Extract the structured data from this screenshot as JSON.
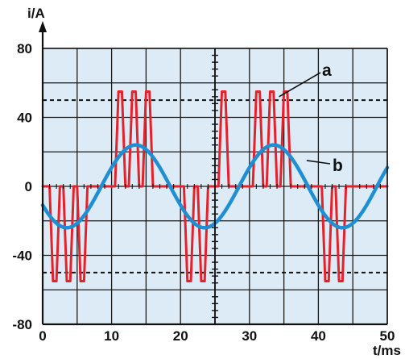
{
  "chart_data": {
    "type": "line",
    "xlabel": "t/ms",
    "ylabel": "i/A",
    "xlim": [
      0,
      50
    ],
    "ylim": [
      -80,
      80
    ],
    "x_ticks": [
      "0",
      "10",
      "20",
      "30",
      "40",
      "50"
    ],
    "y_ticks": [
      "-80",
      "-40",
      "0",
      "40",
      "80"
    ],
    "grid": true,
    "background_color": "#dcebf5",
    "reference_lines": [
      {
        "y": 50,
        "style": "dashed"
      },
      {
        "y": -50,
        "style": "dashed"
      }
    ],
    "series": [
      {
        "name": "a",
        "color": "#e8202a",
        "x": [
          0,
          1,
          1.5,
          2,
          2.5,
          3,
          3.5,
          4,
          4.5,
          5,
          5.5,
          6,
          6.5,
          7,
          10,
          10.5,
          11,
          11.5,
          12,
          12.5,
          13,
          13.5,
          14,
          14.5,
          15,
          15.5,
          16,
          16.5,
          17,
          20,
          20.5,
          21,
          21.5,
          22,
          22.5,
          23,
          23.5,
          24,
          24.5,
          25,
          25.5,
          26,
          26.5,
          27,
          30,
          30.5,
          31,
          31.5,
          32,
          32.5,
          33,
          33.5,
          34,
          34.5,
          35,
          35.5,
          36,
          36.5,
          37,
          40,
          40.5,
          41,
          41.5,
          42,
          42.5,
          43,
          43.5,
          44,
          44.5,
          45,
          45.5,
          46,
          46.5,
          47,
          50
        ],
        "y": [
          0,
          0,
          -55,
          -55,
          0,
          0,
          -55,
          -55,
          0,
          0,
          -55,
          -55,
          0,
          0,
          0,
          0,
          55,
          55,
          0,
          0,
          55,
          55,
          0,
          0,
          55,
          55,
          0,
          0,
          0,
          0,
          0,
          -55,
          -55,
          0,
          0,
          -55,
          -55,
          0,
          0,
          0,
          0,
          55,
          55,
          0,
          0,
          0,
          55,
          55,
          0,
          0,
          55,
          55,
          0,
          0,
          55,
          55,
          0,
          0,
          0,
          0,
          0,
          -55,
          -55,
          0,
          0,
          -55,
          -55,
          0,
          0,
          0,
          0,
          0,
          0,
          0,
          0
        ]
      },
      {
        "name": "b",
        "color": "#1e8fd2",
        "amplitude": 24,
        "period_ms": 20,
        "phase_zero_crossing_ms": 8.5,
        "x": [
          0,
          2.5,
          5,
          7.5,
          8.5,
          10,
          12.5,
          13.5,
          15,
          17.5,
          18.5,
          20,
          22.5,
          23.5,
          25,
          27.5,
          28.5,
          30,
          32.5,
          33.5,
          35,
          37.5,
          38.5,
          40,
          42.5,
          43.5,
          45,
          47.5,
          48.5,
          50
        ],
        "y": [
          -13,
          -23.5,
          -20,
          -7.4,
          0,
          10.9,
          23.1,
          24,
          19.4,
          7.4,
          0,
          -10.9,
          -23.1,
          -24,
          -19.4,
          -7.4,
          0,
          10.9,
          23.1,
          24,
          19.4,
          7.4,
          0,
          -10.9,
          -23.1,
          -24,
          -19.4,
          -7.4,
          0,
          10.9
        ]
      }
    ]
  }
}
